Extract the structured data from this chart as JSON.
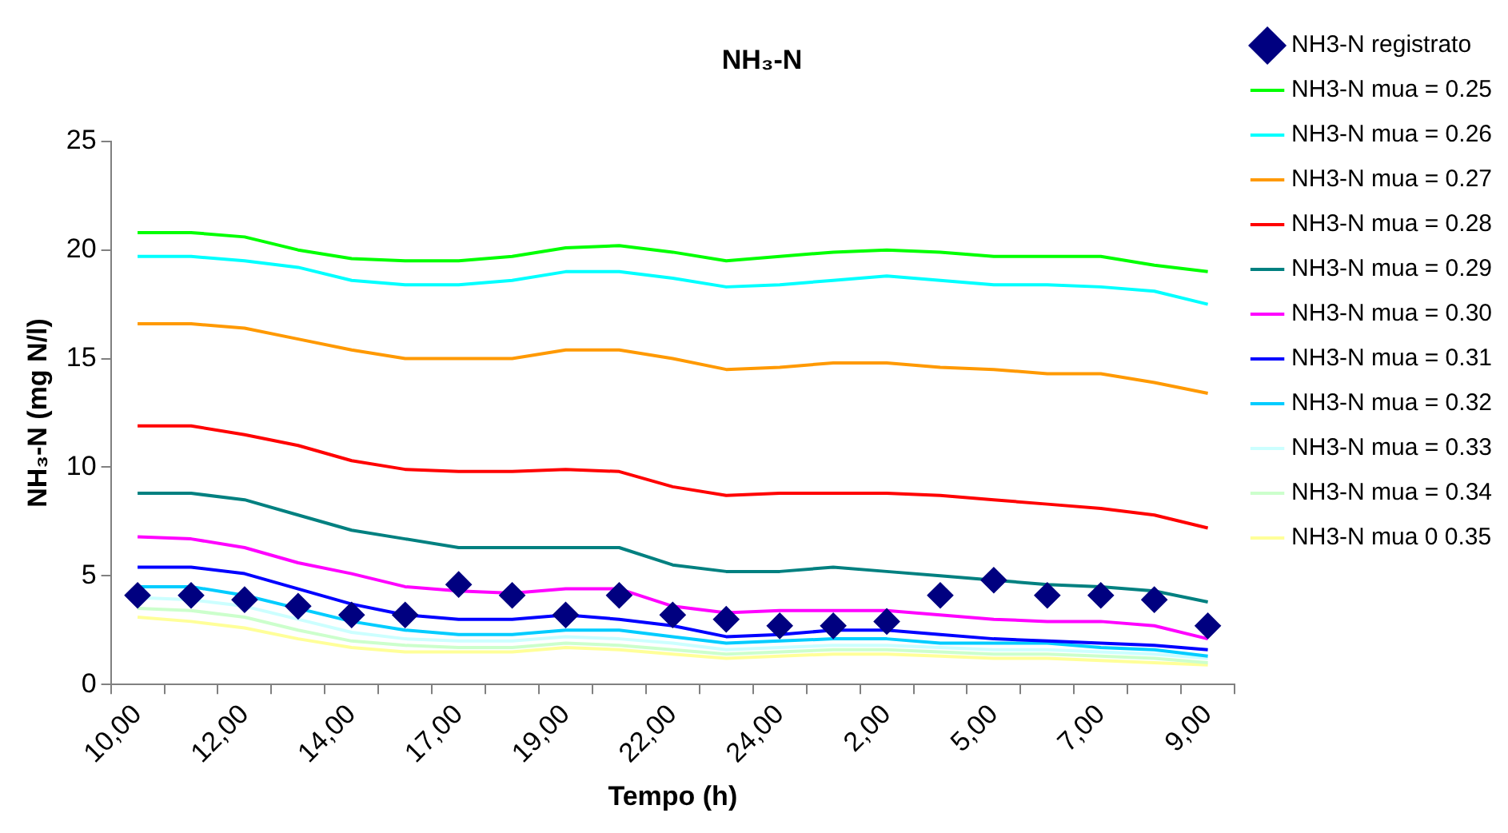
{
  "chart_data": {
    "type": "line",
    "title": "NH₃-N",
    "xlabel": "Tempo (h)",
    "ylabel": "NH₃-N (mg N/l)",
    "categories": [
      "10,00",
      null,
      "12,00",
      null,
      "14,00",
      null,
      "17,00",
      null,
      "19,00",
      null,
      "22,00",
      null,
      "24,00",
      null,
      "2,00",
      null,
      "5,00",
      null,
      "7,00",
      null,
      "9,00"
    ],
    "ylim": [
      0,
      25
    ],
    "yticks": [
      0,
      5,
      10,
      15,
      20,
      25
    ],
    "grid": false,
    "legend": "right",
    "marker": "none",
    "line_style": "solid",
    "series": [
      {
        "name": "NH3-N registrato",
        "type": "scatter",
        "marker": "diamond",
        "color": "#000080",
        "values": [
          4.1,
          4.1,
          3.9,
          3.6,
          3.2,
          3.2,
          4.6,
          4.1,
          3.2,
          4.1,
          3.2,
          3.0,
          2.7,
          2.7,
          2.9,
          4.1,
          4.8,
          4.1,
          4.1,
          3.9,
          2.7
        ]
      },
      {
        "name": "NH3-N mua = 0.25",
        "color": "#00ff00",
        "values": [
          20.8,
          20.8,
          20.6,
          20.0,
          19.6,
          19.5,
          19.5,
          19.7,
          20.1,
          20.2,
          19.9,
          19.5,
          19.7,
          19.9,
          20.0,
          19.9,
          19.7,
          19.7,
          19.7,
          19.3,
          19.0
        ]
      },
      {
        "name": "NH3-N mua = 0.26",
        "color": "#00ffff",
        "values": [
          19.7,
          19.7,
          19.5,
          19.2,
          18.6,
          18.4,
          18.4,
          18.6,
          19.0,
          19.0,
          18.7,
          18.3,
          18.4,
          18.6,
          18.8,
          18.6,
          18.4,
          18.4,
          18.3,
          18.1,
          17.5
        ]
      },
      {
        "name": "NH3-N mua = 0.27",
        "color": "#ff9900",
        "values": [
          16.6,
          16.6,
          16.4,
          15.9,
          15.4,
          15.0,
          15.0,
          15.0,
          15.4,
          15.4,
          15.0,
          14.5,
          14.6,
          14.8,
          14.8,
          14.6,
          14.5,
          14.3,
          14.3,
          13.9,
          13.4
        ]
      },
      {
        "name": "NH3-N mua = 0.28",
        "color": "#ff0000",
        "values": [
          11.9,
          11.9,
          11.5,
          11.0,
          10.3,
          9.9,
          9.8,
          9.8,
          9.9,
          9.8,
          9.1,
          8.7,
          8.8,
          8.8,
          8.8,
          8.7,
          8.5,
          8.3,
          8.1,
          7.8,
          7.2
        ]
      },
      {
        "name": "NH3-N mua = 0.29",
        "color": "#008080",
        "values": [
          8.8,
          8.8,
          8.5,
          7.8,
          7.1,
          6.7,
          6.3,
          6.3,
          6.3,
          6.3,
          5.5,
          5.2,
          5.2,
          5.4,
          5.2,
          5.0,
          4.8,
          4.6,
          4.5,
          4.3,
          3.8
        ]
      },
      {
        "name": "NH3-N mua = 0.30",
        "color": "#ff00ff",
        "values": [
          6.8,
          6.7,
          6.3,
          5.6,
          5.1,
          4.5,
          4.3,
          4.2,
          4.4,
          4.4,
          3.6,
          3.3,
          3.4,
          3.4,
          3.4,
          3.2,
          3.0,
          2.9,
          2.9,
          2.7,
          2.1
        ]
      },
      {
        "name": "NH3-N mua = 0.31",
        "color": "#0000ff",
        "values": [
          5.4,
          5.4,
          5.1,
          4.4,
          3.7,
          3.2,
          3.0,
          3.0,
          3.2,
          3.0,
          2.7,
          2.2,
          2.3,
          2.5,
          2.5,
          2.3,
          2.1,
          2.0,
          1.9,
          1.8,
          1.6
        ]
      },
      {
        "name": "NH3-N mua = 0.32",
        "color": "#00ccff",
        "values": [
          4.5,
          4.5,
          4.1,
          3.5,
          2.9,
          2.5,
          2.3,
          2.3,
          2.5,
          2.5,
          2.2,
          1.9,
          2.0,
          2.1,
          2.1,
          1.9,
          1.9,
          1.9,
          1.7,
          1.6,
          1.3
        ]
      },
      {
        "name": "NH3-N mua = 0.33",
        "color": "#ccffff",
        "values": [
          4.0,
          3.9,
          3.6,
          3.0,
          2.4,
          2.1,
          2.0,
          2.0,
          2.2,
          2.1,
          1.9,
          1.6,
          1.7,
          1.8,
          1.8,
          1.7,
          1.6,
          1.6,
          1.5,
          1.4,
          1.2
        ]
      },
      {
        "name": "NH3-N mua = 0.34",
        "color": "#ccffcc",
        "values": [
          3.5,
          3.4,
          3.1,
          2.5,
          2.0,
          1.8,
          1.7,
          1.7,
          1.9,
          1.8,
          1.6,
          1.4,
          1.5,
          1.6,
          1.6,
          1.5,
          1.4,
          1.4,
          1.3,
          1.2,
          1.0
        ]
      },
      {
        "name": "NH3-N mua 0 0.35",
        "color": "#ffff99",
        "values": [
          3.1,
          2.9,
          2.6,
          2.1,
          1.7,
          1.5,
          1.5,
          1.5,
          1.7,
          1.6,
          1.4,
          1.2,
          1.3,
          1.4,
          1.4,
          1.3,
          1.2,
          1.2,
          1.1,
          1.0,
          0.9
        ]
      }
    ]
  }
}
